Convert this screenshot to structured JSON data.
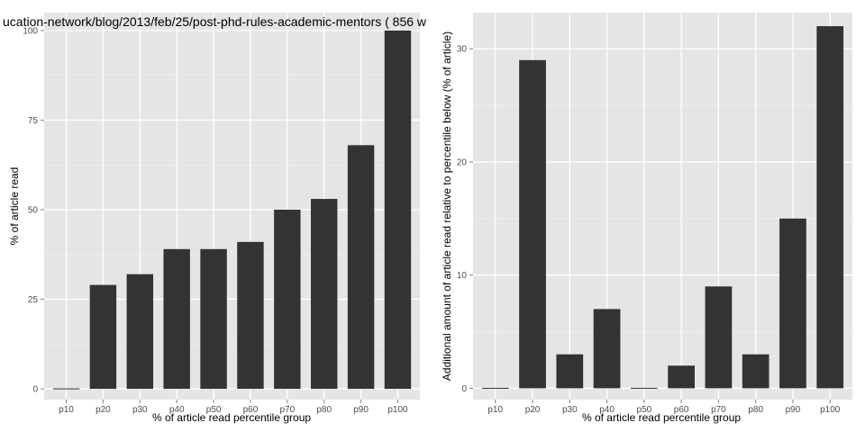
{
  "chart_data": [
    {
      "type": "bar",
      "title": "ucation-network/blog/2013/feb/25/post-phd-rules-academic-mentors ( 856 w",
      "xlabel": "% of article read percentile group",
      "ylabel": "% of article read",
      "categories": [
        "p10",
        "p20",
        "p30",
        "p40",
        "p50",
        "p60",
        "p70",
        "p80",
        "p90",
        "p100"
      ],
      "values": [
        0,
        29,
        32,
        39,
        39,
        41,
        50,
        53,
        68,
        100
      ],
      "ylim": [
        -3,
        105
      ],
      "yticks": [
        0,
        25,
        50,
        75,
        100
      ],
      "grid": true,
      "bar_color": "#333333",
      "panel_background": "#e5e5e5",
      "grid_color": "#ffffff"
    },
    {
      "type": "bar",
      "title": "",
      "xlabel": "% of article read percentile group",
      "ylabel": "Additional amount of article read relative to percentile below (% of article)",
      "categories": [
        "p10",
        "p20",
        "p30",
        "p40",
        "p50",
        "p60",
        "p70",
        "p80",
        "p90",
        "p100"
      ],
      "values": [
        0,
        29,
        3,
        7,
        0,
        2,
        9,
        3,
        15,
        32
      ],
      "ylim": [
        -1,
        33.2
      ],
      "yticks": [
        0,
        10,
        20,
        30
      ],
      "grid": true,
      "bar_color": "#333333",
      "panel_background": "#e5e5e5",
      "grid_color": "#ffffff"
    }
  ]
}
